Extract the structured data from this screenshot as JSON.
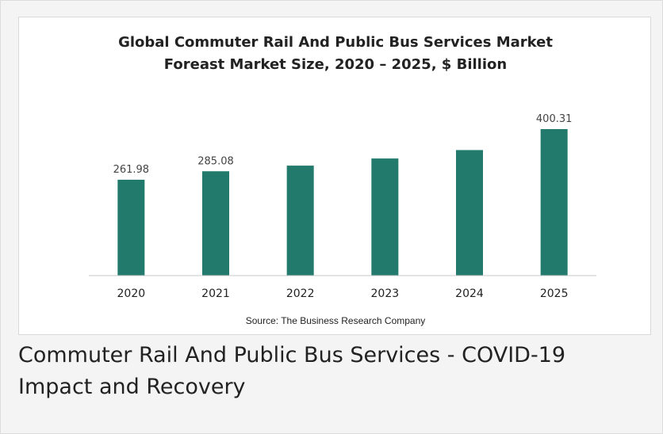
{
  "chart_data": {
    "type": "bar",
    "title": "Global Commuter Rail And Public Bus Services Market",
    "subtitle": "Foreast Market Size, 2020 – 2025, $ Billion",
    "categories": [
      "2020",
      "2021",
      "2022",
      "2023",
      "2024",
      "2025"
    ],
    "values": [
      261.98,
      285.08,
      300.5,
      320.0,
      343.0,
      400.31
    ],
    "data_labels": [
      "261.98",
      "285.08",
      "",
      "",
      "",
      "400.31"
    ],
    "xlabel": "",
    "ylabel": "",
    "ylim": [
      0,
      400.31
    ],
    "grid": false,
    "bar_color": "#217a6b",
    "source": "Source: The Business Research Company"
  },
  "caption": "Commuter Rail And Public Bus Services - COVID-19 Impact and Recovery"
}
